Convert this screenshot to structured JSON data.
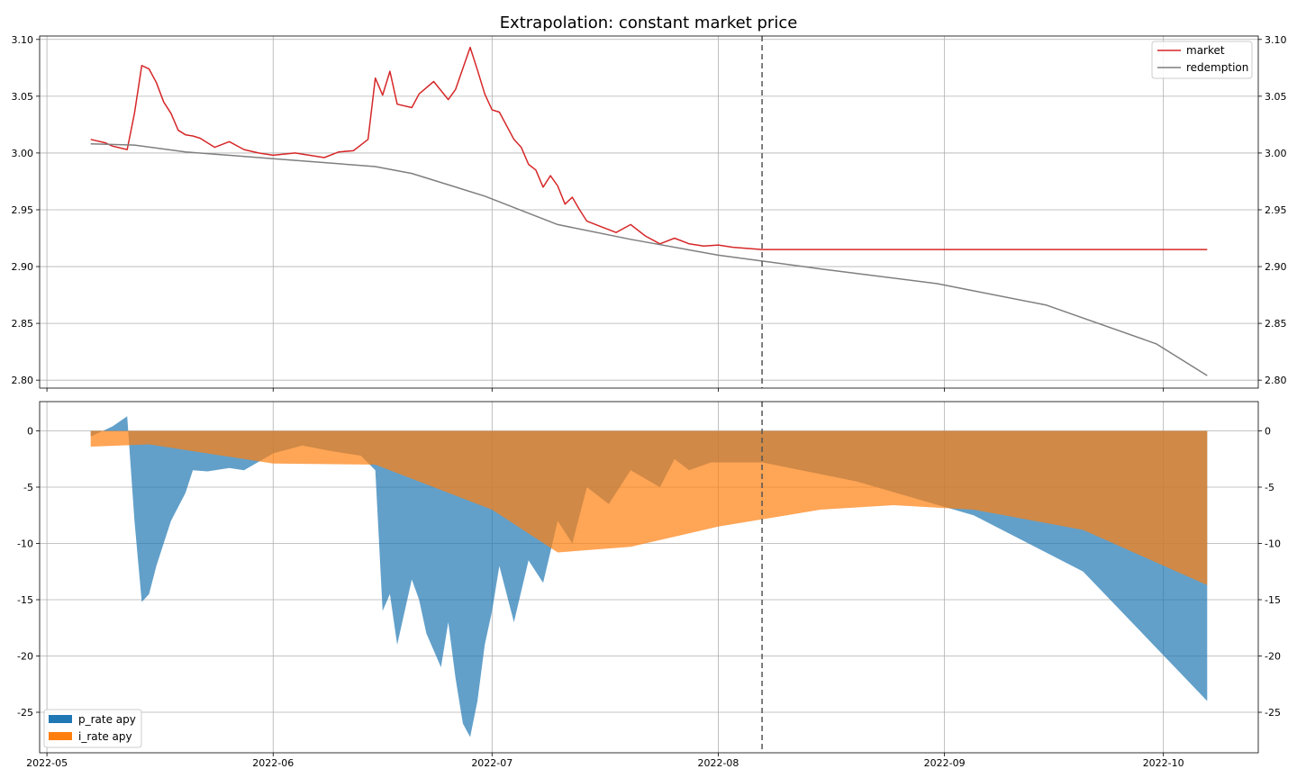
{
  "colors": {
    "market": "#d62728",
    "redemption": "#7f7f7f",
    "p_rate": "#1f77b4",
    "i_rate": "#ff7f0e",
    "vline": "#555555"
  },
  "chart_data": [
    {
      "type": "line",
      "title": "Extrapolation: constant market price",
      "xlabel": "",
      "ylabel": "",
      "grid": true,
      "legend_position": "top-right",
      "x_ticks": [
        "2022-05",
        "2022-06",
        "2022-07",
        "2022-08",
        "2022-09",
        "2022-10"
      ],
      "y_ticks": [
        "2.80",
        "2.85",
        "2.90",
        "2.95",
        "3.00",
        "3.05",
        "3.10"
      ],
      "ylim": [
        2.793,
        3.103
      ],
      "xlim": [
        "2022-04-30",
        "2022-10-14"
      ],
      "vline_date": "2022-08-07",
      "series": [
        {
          "name": "market",
          "x": [
            "2022-05-07",
            "2022-05-09",
            "2022-05-10",
            "2022-05-12",
            "2022-05-13",
            "2022-05-14",
            "2022-05-15",
            "2022-05-16",
            "2022-05-17",
            "2022-05-18",
            "2022-05-19",
            "2022-05-20",
            "2022-05-21",
            "2022-05-22",
            "2022-05-24",
            "2022-05-26",
            "2022-05-28",
            "2022-05-30",
            "2022-06-01",
            "2022-06-04",
            "2022-06-08",
            "2022-06-10",
            "2022-06-12",
            "2022-06-14",
            "2022-06-15",
            "2022-06-16",
            "2022-06-17",
            "2022-06-18",
            "2022-06-20",
            "2022-06-21",
            "2022-06-23",
            "2022-06-25",
            "2022-06-26",
            "2022-06-28",
            "2022-06-29",
            "2022-06-30",
            "2022-07-01",
            "2022-07-02",
            "2022-07-04",
            "2022-07-05",
            "2022-07-06",
            "2022-07-07",
            "2022-07-08",
            "2022-07-09",
            "2022-07-10",
            "2022-07-11",
            "2022-07-12",
            "2022-07-13",
            "2022-07-14",
            "2022-07-16",
            "2022-07-18",
            "2022-07-20",
            "2022-07-22",
            "2022-07-24",
            "2022-07-26",
            "2022-07-28",
            "2022-07-30",
            "2022-08-01",
            "2022-08-03",
            "2022-08-05",
            "2022-08-07",
            "2022-08-20",
            "2022-09-10",
            "2022-09-30",
            "2022-10-07"
          ],
          "y": [
            3.012,
            3.009,
            3.006,
            3.003,
            3.035,
            3.077,
            3.074,
            3.062,
            3.045,
            3.035,
            3.02,
            3.016,
            3.015,
            3.013,
            3.005,
            3.01,
            3.003,
            3.0,
            2.998,
            3.0,
            2.996,
            3.001,
            3.002,
            3.012,
            3.066,
            3.051,
            3.072,
            3.043,
            3.04,
            3.052,
            3.063,
            3.047,
            3.056,
            3.093,
            3.073,
            3.052,
            3.038,
            3.036,
            3.012,
            3.005,
            2.99,
            2.985,
            2.97,
            2.98,
            2.971,
            2.955,
            2.961,
            2.95,
            2.94,
            2.935,
            2.93,
            2.937,
            2.927,
            2.92,
            2.925,
            2.92,
            2.918,
            2.919,
            2.917,
            2.916,
            2.915,
            2.915,
            2.915,
            2.915,
            2.915
          ]
        },
        {
          "name": "redemption",
          "x": [
            "2022-05-07",
            "2022-05-13",
            "2022-05-20",
            "2022-06-01",
            "2022-06-15",
            "2022-06-20",
            "2022-06-30",
            "2022-07-10",
            "2022-07-20",
            "2022-08-01",
            "2022-08-15",
            "2022-08-31",
            "2022-09-15",
            "2022-09-30",
            "2022-10-07"
          ],
          "y": [
            3.008,
            3.007,
            3.001,
            2.995,
            2.988,
            2.982,
            2.962,
            2.937,
            2.924,
            2.91,
            2.898,
            2.885,
            2.866,
            2.832,
            2.804
          ]
        }
      ]
    },
    {
      "type": "area",
      "title": "",
      "xlabel": "",
      "ylabel": "",
      "grid": true,
      "legend_position": "bottom-left",
      "x_ticks": [
        "2022-05",
        "2022-06",
        "2022-07",
        "2022-08",
        "2022-09",
        "2022-10"
      ],
      "y_ticks": [
        "-25",
        "-20",
        "-15",
        "-10",
        "-5",
        "0"
      ],
      "ylim": [
        -28.6,
        2.6
      ],
      "xlim": [
        "2022-04-30",
        "2022-10-14"
      ],
      "vline_date": "2022-08-07",
      "series": [
        {
          "name": "p_rate apy",
          "x": [
            "2022-05-07",
            "2022-05-10",
            "2022-05-12",
            "2022-05-13",
            "2022-05-14",
            "2022-05-15",
            "2022-05-16",
            "2022-05-18",
            "2022-05-20",
            "2022-05-21",
            "2022-05-23",
            "2022-05-26",
            "2022-05-28",
            "2022-06-01",
            "2022-06-05",
            "2022-06-09",
            "2022-06-13",
            "2022-06-15",
            "2022-06-16",
            "2022-06-17",
            "2022-06-18",
            "2022-06-20",
            "2022-06-21",
            "2022-06-22",
            "2022-06-24",
            "2022-06-25",
            "2022-06-26",
            "2022-06-27",
            "2022-06-28",
            "2022-06-29",
            "2022-06-30",
            "2022-07-01",
            "2022-07-02",
            "2022-07-04",
            "2022-07-06",
            "2022-07-08",
            "2022-07-10",
            "2022-07-12",
            "2022-07-14",
            "2022-07-17",
            "2022-07-20",
            "2022-07-24",
            "2022-07-26",
            "2022-07-28",
            "2022-07-31",
            "2022-08-03",
            "2022-08-07",
            "2022-08-20",
            "2022-09-05",
            "2022-09-20",
            "2022-10-07"
          ],
          "y": [
            -0.5,
            0.4,
            1.3,
            -8.0,
            -15.2,
            -14.5,
            -12.0,
            -8.0,
            -5.5,
            -3.5,
            -3.6,
            -3.3,
            -3.5,
            -2.0,
            -1.3,
            -1.8,
            -2.2,
            -3.5,
            -16.0,
            -14.5,
            -19.0,
            -13.2,
            -15.0,
            -18.0,
            -21.0,
            -17.0,
            -22.0,
            -26.0,
            -27.2,
            -24.0,
            -19.0,
            -16.0,
            -12.0,
            -17.0,
            -11.5,
            -13.5,
            -8.0,
            -10.0,
            -5.0,
            -6.5,
            -3.5,
            -5.0,
            -2.5,
            -3.5,
            -2.8,
            -2.8,
            -2.8,
            -4.5,
            -7.5,
            -12.5,
            -24.0
          ]
        },
        {
          "name": "i_rate apy",
          "x": [
            "2022-05-07",
            "2022-05-15",
            "2022-06-01",
            "2022-06-15",
            "2022-07-01",
            "2022-07-10",
            "2022-07-20",
            "2022-08-01",
            "2022-08-15",
            "2022-08-25",
            "2022-09-05",
            "2022-09-20",
            "2022-10-07"
          ],
          "y": [
            -1.4,
            -1.2,
            -2.9,
            -3.0,
            -7.0,
            -10.8,
            -10.3,
            -8.5,
            -7.0,
            -6.6,
            -7.0,
            -8.8,
            -13.7
          ]
        }
      ]
    }
  ]
}
